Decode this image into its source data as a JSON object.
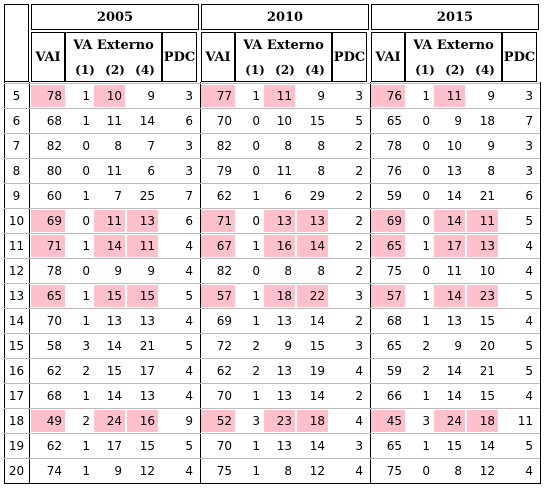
{
  "years": [
    {
      "label": "2005",
      "cols": {
        "vai": "VAI",
        "ext": "VA Externo",
        "pdc": "PDC"
      },
      "subs": [
        "(1)",
        "(2)",
        "(4)"
      ]
    },
    {
      "label": "2010",
      "cols": {
        "vai": "VAI",
        "ext": "VA Externo",
        "pdc": "PDC"
      },
      "subs": [
        "(1)",
        "(2)",
        "(4)"
      ]
    },
    {
      "label": "2015",
      "cols": {
        "vai": "VAI",
        "ext": "VA Externo",
        "pdc": "PDC"
      },
      "subs": [
        "(1)",
        "(2)",
        "(4)"
      ]
    }
  ],
  "highlight_color": "#ffc0cb",
  "rows": [
    {
      "id": "5",
      "g": [
        [
          78,
          1,
          10,
          9,
          3
        ],
        [
          77,
          1,
          11,
          9,
          3
        ],
        [
          76,
          1,
          11,
          9,
          3
        ]
      ],
      "h": [
        [
          1,
          0,
          1,
          0,
          0
        ],
        [
          1,
          0,
          1,
          0,
          0
        ],
        [
          1,
          0,
          1,
          0,
          0
        ]
      ]
    },
    {
      "id": "6",
      "g": [
        [
          68,
          1,
          11,
          14,
          6
        ],
        [
          70,
          0,
          10,
          15,
          5
        ],
        [
          65,
          0,
          9,
          18,
          7
        ]
      ],
      "h": [
        [
          0,
          0,
          0,
          0,
          0
        ],
        [
          0,
          0,
          0,
          0,
          0
        ],
        [
          0,
          0,
          0,
          0,
          0
        ]
      ]
    },
    {
      "id": "7",
      "g": [
        [
          82,
          0,
          8,
          7,
          3
        ],
        [
          82,
          0,
          8,
          8,
          2
        ],
        [
          78,
          0,
          10,
          9,
          3
        ]
      ],
      "h": [
        [
          0,
          0,
          0,
          0,
          0
        ],
        [
          0,
          0,
          0,
          0,
          0
        ],
        [
          0,
          0,
          0,
          0,
          0
        ]
      ]
    },
    {
      "id": "8",
      "g": [
        [
          80,
          0,
          11,
          6,
          3
        ],
        [
          79,
          0,
          11,
          8,
          2
        ],
        [
          76,
          0,
          13,
          8,
          3
        ]
      ],
      "h": [
        [
          0,
          0,
          0,
          0,
          0
        ],
        [
          0,
          0,
          0,
          0,
          0
        ],
        [
          0,
          0,
          0,
          0,
          0
        ]
      ]
    },
    {
      "id": "9",
      "g": [
        [
          60,
          1,
          7,
          25,
          7
        ],
        [
          62,
          1,
          6,
          29,
          2
        ],
        [
          59,
          0,
          14,
          21,
          6
        ]
      ],
      "h": [
        [
          0,
          0,
          0,
          0,
          0
        ],
        [
          0,
          0,
          0,
          0,
          0
        ],
        [
          0,
          0,
          0,
          0,
          0
        ]
      ]
    },
    {
      "id": "10",
      "g": [
        [
          69,
          0,
          11,
          13,
          6
        ],
        [
          71,
          0,
          13,
          13,
          2
        ],
        [
          69,
          0,
          14,
          11,
          5
        ]
      ],
      "h": [
        [
          1,
          0,
          1,
          1,
          0
        ],
        [
          1,
          0,
          1,
          1,
          0
        ],
        [
          1,
          0,
          1,
          1,
          0
        ]
      ]
    },
    {
      "id": "11",
      "g": [
        [
          71,
          1,
          14,
          11,
          4
        ],
        [
          67,
          1,
          16,
          14,
          2
        ],
        [
          65,
          1,
          17,
          13,
          4
        ]
      ],
      "h": [
        [
          1,
          0,
          1,
          1,
          0
        ],
        [
          1,
          0,
          1,
          1,
          0
        ],
        [
          1,
          0,
          1,
          1,
          0
        ]
      ]
    },
    {
      "id": "12",
      "g": [
        [
          78,
          0,
          9,
          9,
          4
        ],
        [
          82,
          0,
          8,
          8,
          2
        ],
        [
          75,
          0,
          11,
          10,
          4
        ]
      ],
      "h": [
        [
          0,
          0,
          0,
          0,
          0
        ],
        [
          0,
          0,
          0,
          0,
          0
        ],
        [
          0,
          0,
          0,
          0,
          0
        ]
      ]
    },
    {
      "id": "13",
      "g": [
        [
          65,
          1,
          15,
          15,
          5
        ],
        [
          57,
          1,
          18,
          22,
          3
        ],
        [
          57,
          1,
          14,
          23,
          5
        ]
      ],
      "h": [
        [
          1,
          0,
          1,
          1,
          0
        ],
        [
          1,
          0,
          1,
          1,
          0
        ],
        [
          1,
          0,
          1,
          1,
          0
        ]
      ]
    },
    {
      "id": "14",
      "g": [
        [
          70,
          1,
          13,
          13,
          4
        ],
        [
          69,
          1,
          13,
          14,
          2
        ],
        [
          68,
          1,
          13,
          15,
          4
        ]
      ],
      "h": [
        [
          0,
          0,
          0,
          0,
          0
        ],
        [
          0,
          0,
          0,
          0,
          0
        ],
        [
          0,
          0,
          0,
          0,
          0
        ]
      ]
    },
    {
      "id": "15",
      "g": [
        [
          58,
          3,
          14,
          21,
          5
        ],
        [
          72,
          2,
          9,
          15,
          3
        ],
        [
          65,
          2,
          9,
          20,
          5
        ]
      ],
      "h": [
        [
          0,
          0,
          0,
          0,
          0
        ],
        [
          0,
          0,
          0,
          0,
          0
        ],
        [
          0,
          0,
          0,
          0,
          0
        ]
      ]
    },
    {
      "id": "16",
      "g": [
        [
          62,
          2,
          15,
          17,
          4
        ],
        [
          62,
          2,
          13,
          19,
          4
        ],
        [
          59,
          2,
          14,
          21,
          5
        ]
      ],
      "h": [
        [
          0,
          0,
          0,
          0,
          0
        ],
        [
          0,
          0,
          0,
          0,
          0
        ],
        [
          0,
          0,
          0,
          0,
          0
        ]
      ]
    },
    {
      "id": "17",
      "g": [
        [
          68,
          1,
          14,
          13,
          4
        ],
        [
          70,
          1,
          13,
          14,
          2
        ],
        [
          66,
          1,
          14,
          15,
          4
        ]
      ],
      "h": [
        [
          0,
          0,
          0,
          0,
          0
        ],
        [
          0,
          0,
          0,
          0,
          0
        ],
        [
          0,
          0,
          0,
          0,
          0
        ]
      ]
    },
    {
      "id": "18",
      "g": [
        [
          49,
          2,
          24,
          16,
          9
        ],
        [
          52,
          3,
          23,
          18,
          4
        ],
        [
          45,
          3,
          24,
          18,
          11
        ]
      ],
      "h": [
        [
          1,
          0,
          1,
          1,
          0
        ],
        [
          1,
          0,
          1,
          1,
          0
        ],
        [
          1,
          0,
          1,
          1,
          0
        ]
      ]
    },
    {
      "id": "19",
      "g": [
        [
          62,
          1,
          17,
          15,
          5
        ],
        [
          70,
          1,
          13,
          14,
          3
        ],
        [
          65,
          1,
          15,
          14,
          5
        ]
      ],
      "h": [
        [
          0,
          0,
          0,
          0,
          0
        ],
        [
          0,
          0,
          0,
          0,
          0
        ],
        [
          0,
          0,
          0,
          0,
          0
        ]
      ]
    },
    {
      "id": "20",
      "g": [
        [
          74,
          1,
          9,
          12,
          4
        ],
        [
          75,
          1,
          8,
          12,
          4
        ],
        [
          75,
          0,
          8,
          12,
          4
        ]
      ],
      "h": [
        [
          0,
          0,
          0,
          0,
          0
        ],
        [
          0,
          0,
          0,
          0,
          0
        ],
        [
          0,
          0,
          0,
          0,
          0
        ]
      ]
    }
  ]
}
